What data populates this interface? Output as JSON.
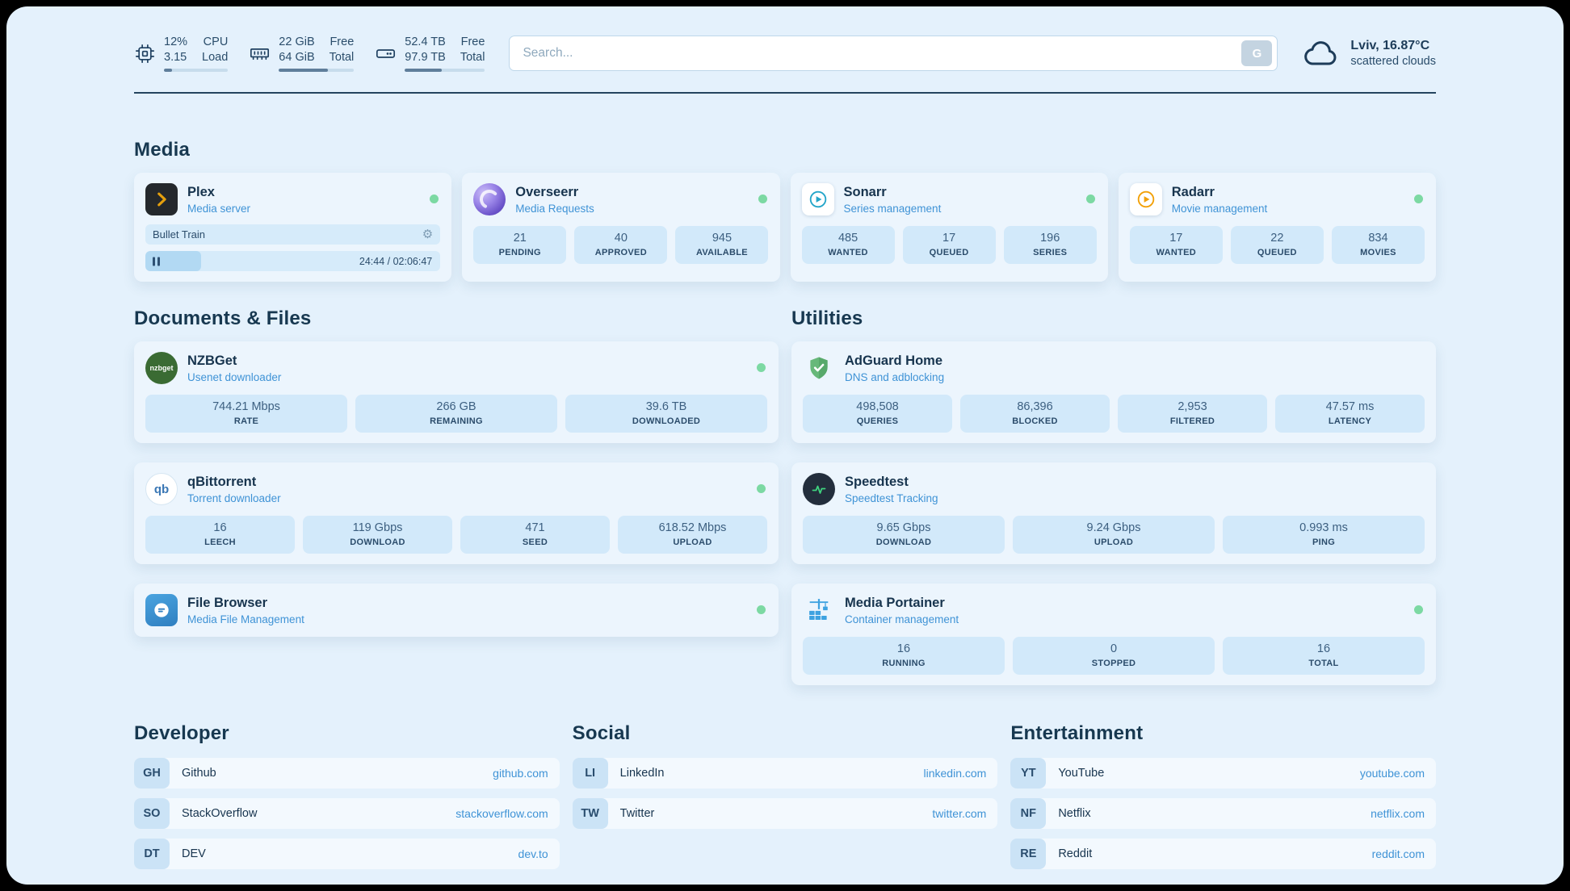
{
  "topbar": {
    "cpu": {
      "value1": "12%",
      "label1": "CPU",
      "value2": "3.15",
      "label2": "Load",
      "percent": 12
    },
    "ram": {
      "value1": "22 GiB",
      "label1": "Free",
      "value2": "64 GiB",
      "label2": "Total",
      "percent": 65
    },
    "disk": {
      "value1": "52.4 TB",
      "label1": "Free",
      "value2": "97.9 TB",
      "label2": "Total",
      "percent": 46
    },
    "search": {
      "placeholder": "Search...",
      "button_label": "G"
    },
    "weather": {
      "location": "Lviv, 16.87°C",
      "condition": "scattered clouds"
    }
  },
  "icons": {
    "gear": "⚙"
  },
  "media": {
    "heading": "Media",
    "plex": {
      "name": "Plex",
      "desc": "Media server",
      "now_playing": "Bullet Train",
      "time": "24:44 / 02:06:47",
      "progress_percent": 19
    },
    "overseerr": {
      "name": "Overseerr",
      "desc": "Media Requests",
      "stats": [
        {
          "value": "21",
          "label": "PENDING"
        },
        {
          "value": "40",
          "label": "APPROVED"
        },
        {
          "value": "945",
          "label": "AVAILABLE"
        }
      ]
    },
    "sonarr": {
      "name": "Sonarr",
      "desc": "Series management",
      "stats": [
        {
          "value": "485",
          "label": "WANTED"
        },
        {
          "value": "17",
          "label": "QUEUED"
        },
        {
          "value": "196",
          "label": "SERIES"
        }
      ]
    },
    "radarr": {
      "name": "Radarr",
      "desc": "Movie management",
      "stats": [
        {
          "value": "17",
          "label": "WANTED"
        },
        {
          "value": "22",
          "label": "QUEUED"
        },
        {
          "value": "834",
          "label": "MOVIES"
        }
      ]
    }
  },
  "documents": {
    "heading": "Documents & Files",
    "nzbget": {
      "name": "NZBGet",
      "desc": "Usenet downloader",
      "icon_text": "nzbget",
      "stats": [
        {
          "value": "744.21 Mbps",
          "label": "RATE"
        },
        {
          "value": "266 GB",
          "label": "REMAINING"
        },
        {
          "value": "39.6 TB",
          "label": "DOWNLOADED"
        }
      ]
    },
    "qbittorrent": {
      "name": "qBittorrent",
      "desc": "Torrent downloader",
      "icon_text": "qb",
      "stats": [
        {
          "value": "16",
          "label": "LEECH"
        },
        {
          "value": "119 Gbps",
          "label": "DOWNLOAD"
        },
        {
          "value": "471",
          "label": "SEED"
        },
        {
          "value": "618.52 Mbps",
          "label": "UPLOAD"
        }
      ]
    },
    "filebrowser": {
      "name": "File Browser",
      "desc": "Media File Management"
    }
  },
  "utilities": {
    "heading": "Utilities",
    "adguard": {
      "name": "AdGuard Home",
      "desc": "DNS and adblocking",
      "stats": [
        {
          "value": "498,508",
          "label": "QUERIES"
        },
        {
          "value": "86,396",
          "label": "BLOCKED"
        },
        {
          "value": "2,953",
          "label": "FILTERED"
        },
        {
          "value": "47.57 ms",
          "label": "LATENCY"
        }
      ]
    },
    "speedtest": {
      "name": "Speedtest",
      "desc": "Speedtest Tracking",
      "stats": [
        {
          "value": "9.65 Gbps",
          "label": "DOWNLOAD"
        },
        {
          "value": "9.24 Gbps",
          "label": "UPLOAD"
        },
        {
          "value": "0.993 ms",
          "label": "PING"
        }
      ]
    },
    "portainer": {
      "name": "Media Portainer",
      "desc": "Container management",
      "stats": [
        {
          "value": "16",
          "label": "RUNNING"
        },
        {
          "value": "0",
          "label": "STOPPED"
        },
        {
          "value": "16",
          "label": "TOTAL"
        }
      ]
    }
  },
  "bookmarks": {
    "developer": {
      "heading": "Developer",
      "items": [
        {
          "abbr": "GH",
          "name": "Github",
          "url": "github.com"
        },
        {
          "abbr": "SO",
          "name": "StackOverflow",
          "url": "stackoverflow.com"
        },
        {
          "abbr": "DT",
          "name": "DEV",
          "url": "dev.to"
        }
      ]
    },
    "social": {
      "heading": "Social",
      "items": [
        {
          "abbr": "LI",
          "name": "LinkedIn",
          "url": "linkedin.com"
        },
        {
          "abbr": "TW",
          "name": "Twitter",
          "url": "twitter.com"
        }
      ]
    },
    "entertainment": {
      "heading": "Entertainment",
      "items": [
        {
          "abbr": "YT",
          "name": "YouTube",
          "url": "youtube.com"
        },
        {
          "abbr": "NF",
          "name": "Netflix",
          "url": "netflix.com"
        },
        {
          "abbr": "RE",
          "name": "Reddit",
          "url": "reddit.com"
        }
      ]
    }
  }
}
